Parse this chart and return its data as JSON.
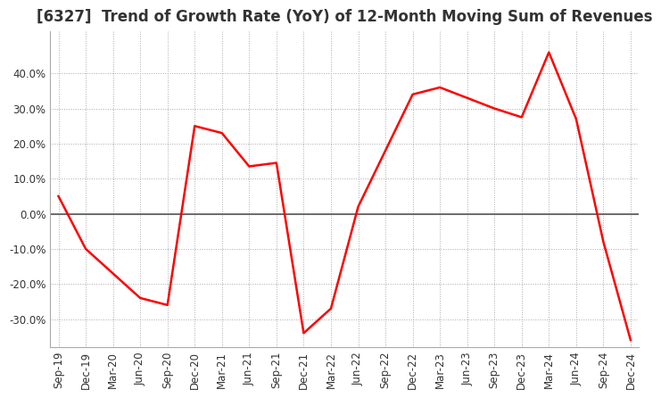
{
  "title": "[6327]  Trend of Growth Rate (YoY) of 12-Month Moving Sum of Revenues",
  "x_labels": [
    "Sep-19",
    "Dec-19",
    "Mar-20",
    "Jun-20",
    "Sep-20",
    "Dec-20",
    "Mar-21",
    "Jun-21",
    "Sep-21",
    "Dec-21",
    "Mar-22",
    "Jun-22",
    "Sep-22",
    "Dec-22",
    "Mar-23",
    "Jun-23",
    "Sep-23",
    "Dec-23",
    "Mar-24",
    "Jun-24",
    "Sep-24",
    "Dec-24"
  ],
  "y_values": [
    5.0,
    -10.0,
    -17.0,
    -24.0,
    -26.0,
    25.0,
    23.0,
    13.5,
    14.5,
    -34.0,
    -27.0,
    2.0,
    18.0,
    34.0,
    36.0,
    33.0,
    30.0,
    27.5,
    46.0,
    27.0,
    -8.0,
    -36.0
  ],
  "line_color": "#ff0000",
  "background_color": "#ffffff",
  "grid_color": "#aaaaaa",
  "zero_line_color": "#555555",
  "ylim": [
    -38,
    52
  ],
  "yticks": [
    -30.0,
    -20.0,
    -10.0,
    0.0,
    10.0,
    20.0,
    30.0,
    40.0
  ],
  "title_fontsize": 12,
  "tick_fontsize": 8.5
}
